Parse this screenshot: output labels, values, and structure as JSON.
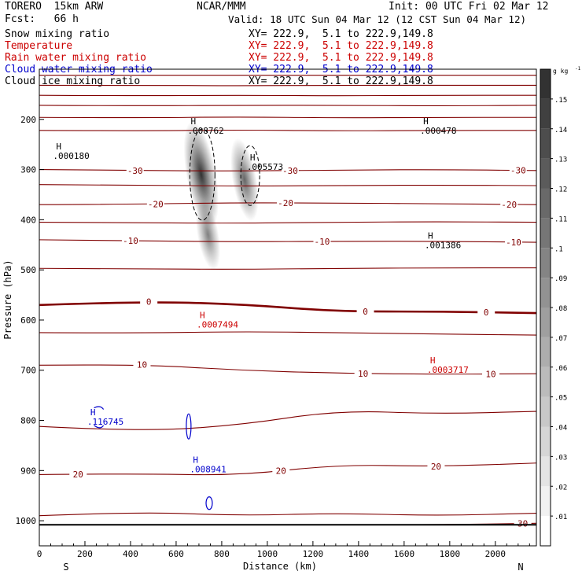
{
  "header": {
    "model": "TORERO  15km ARW",
    "center": "NCAR/MMM",
    "init": "Init: 00 UTC Fri 02 Mar 12",
    "fcst": "Fcst:   66 h",
    "valid": "Valid: 18 UTC Sun 04 Mar 12 (12 CST Sun 04 Mar 12)"
  },
  "fields": [
    {
      "name": "Snow mixing ratio",
      "xy": "XY= 222.9,  5.1 to 222.9,149.8",
      "color": "#000000"
    },
    {
      "name": "Temperature",
      "xy": "XY= 222.9,  5.1 to 222.9,149.8",
      "color": "#cc0000"
    },
    {
      "name": "Rain water mixing ratio",
      "xy": "XY= 222.9,  5.1 to 222.9,149.8",
      "color": "#cc0000"
    },
    {
      "name": "Cloud water mixing ratio",
      "xy": "XY= 222.9,  5.1 to 222.9,149.8",
      "color": "#0000cc"
    },
    {
      "name": "Cloud ice mixing ratio",
      "xy": "XY= 222.9,  5.1 to 222.9,149.8",
      "color": "#000000"
    }
  ],
  "colors": {
    "temperature": "#800000",
    "rain": "#cc0000",
    "cloud_water": "#0000cc",
    "snow": "#000000"
  },
  "chart_data": {
    "type": "contour",
    "title": "Vertical cross section",
    "xlabel": "Distance (km)",
    "ylabel": "Pressure (hPa)",
    "xlim": [
      0,
      2180
    ],
    "ylim": [
      1050,
      100
    ],
    "xticks": [
      0,
      200,
      400,
      600,
      800,
      1000,
      1200,
      1400,
      1600,
      1800,
      2000
    ],
    "yticks": [
      200,
      300,
      400,
      500,
      600,
      700,
      800,
      900,
      1000
    ],
    "end_labels": {
      "left": "S",
      "right": "N"
    },
    "temperature_isotherms": [
      {
        "t": -60,
        "p": [
          112,
          112,
          112,
          112,
          112,
          112
        ]
      },
      {
        "t": -55,
        "p": [
          132,
          132,
          133,
          132,
          132,
          132
        ]
      },
      {
        "t": -50,
        "p": [
          152,
          153,
          152,
          153,
          152,
          152
        ]
      },
      {
        "t": -45,
        "p": [
          172,
          173,
          172,
          172,
          173,
          172
        ]
      },
      {
        "t": -40,
        "p": [
          196,
          197,
          195,
          197,
          196,
          196
        ]
      },
      {
        "t": -35,
        "p": [
          222,
          223,
          221,
          223,
          222,
          222
        ]
      },
      {
        "t": -30,
        "p": [
          300,
          302,
          303,
          301,
          300,
          302
        ],
        "label": "-30",
        "label_x": [
          420,
          1100,
          2100
        ]
      },
      {
        "t": -25,
        "p": [
          330,
          331,
          333,
          332,
          331,
          332
        ]
      },
      {
        "t": -20,
        "p": [
          370,
          369,
          366,
          367,
          368,
          370
        ],
        "label": "-20",
        "label_x": [
          510,
          1080,
          2060
        ]
      },
      {
        "t": -15,
        "p": [
          405,
          406,
          407,
          405,
          404,
          405
        ]
      },
      {
        "t": -10,
        "p": [
          440,
          442,
          444,
          443,
          443,
          445
        ],
        "label": "-10",
        "label_x": [
          400,
          1240,
          2080
        ]
      },
      {
        "t": -5,
        "p": [
          497,
          498,
          499,
          497,
          496,
          496
        ]
      },
      {
        "t": 0,
        "p": [
          570,
          563,
          568,
          583,
          583,
          586
        ],
        "label": "0",
        "label_x": [
          480,
          1430,
          1960
        ]
      },
      {
        "t": 5,
        "p": [
          625,
          626,
          623,
          625,
          628,
          630
        ]
      },
      {
        "t": 10,
        "p": [
          690,
          688,
          700,
          706,
          708,
          707
        ],
        "label": "10",
        "label_x": [
          450,
          1420,
          1980
        ]
      },
      {
        "t": 15,
        "p": [
          812,
          822,
          810,
          780,
          787,
          782
        ]
      },
      {
        "t": 20,
        "p": [
          908,
          906,
          910,
          888,
          892,
          885
        ],
        "label": "20",
        "label_x": [
          170,
          1060,
          1740
        ]
      },
      {
        "t": 25,
        "p": [
          990,
          982,
          990,
          985,
          990,
          985
        ]
      },
      {
        "t": 30,
        "p": [
          1008,
          1008,
          1008,
          1008,
          1008,
          1005
        ],
        "label": "30",
        "label_x": [
          2120
        ]
      }
    ],
    "surface_pressure": 1008,
    "maxima": [
      {
        "field": "snow",
        "x": 650,
        "p": 210,
        "label": ".008762"
      },
      {
        "field": "snow",
        "x": 60,
        "p": 260,
        "label": ".000180"
      },
      {
        "field": "snow",
        "x": 910,
        "p": 282,
        "label": ".005573"
      },
      {
        "field": "snow",
        "x": 1670,
        "p": 210,
        "label": ".000478"
      },
      {
        "field": "snow",
        "x": 1690,
        "p": 438,
        "label": ".001386"
      },
      {
        "field": "rain",
        "x": 690,
        "p": 596,
        "label": ".0007494"
      },
      {
        "field": "rain",
        "x": 1700,
        "p": 686,
        "label": ".0003717"
      },
      {
        "field": "cloud_water",
        "x": 210,
        "p": 790,
        "label": ".116745"
      },
      {
        "field": "cloud_water",
        "x": 660,
        "p": 885,
        "label": ".008941"
      }
    ],
    "snow_shading": [
      {
        "x": 710,
        "p": 310,
        "q": 0.15
      },
      {
        "x": 740,
        "p": 430,
        "q": 0.06
      },
      {
        "x": 900,
        "p": 320,
        "q": 0.09
      }
    ],
    "colorbar": {
      "unit": "g kg",
      "unit_exp": "-1",
      "levels": [
        0.01,
        0.02,
        0.03,
        0.04,
        0.05,
        0.06,
        0.07,
        0.08,
        0.09,
        0.1,
        0.11,
        0.12,
        0.13,
        0.14,
        0.15
      ],
      "labels": [
        ".01",
        ".02",
        ".03",
        ".04",
        ".05",
        ".06",
        ".07",
        ".08",
        ".09",
        ".1",
        ".11",
        ".12",
        ".13",
        ".14",
        ".15"
      ]
    }
  }
}
